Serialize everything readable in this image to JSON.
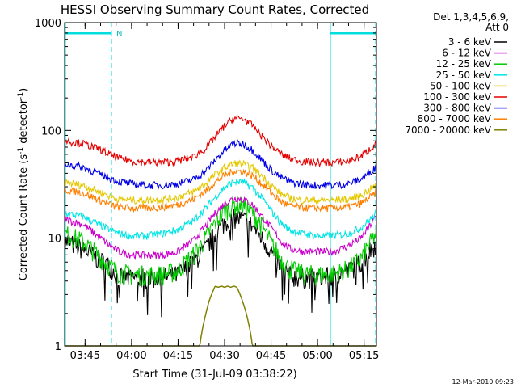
{
  "chart_data": {
    "type": "line",
    "title": "HESSI Observing Summary Count Rates, Corrected",
    "xlabel": "Start Time (31-Jul-09 03:38:22)",
    "ylabel": {
      "main": "Corrected Count Rate (s",
      "sup1": "-1",
      "mid": " detector",
      "sup2": "-1",
      "end": ")"
    },
    "y_scale": "log",
    "ylim": [
      1,
      1000
    ],
    "xlim_minutes": [
      218.4,
      319.0
    ],
    "x_ticks": [
      {
        "label": "03:45",
        "minute": 225
      },
      {
        "label": "04:00",
        "minute": 240
      },
      {
        "label": "04:15",
        "minute": 255
      },
      {
        "label": "04:30",
        "minute": 270
      },
      {
        "label": "04:45",
        "minute": 285
      },
      {
        "label": "05:00",
        "minute": 300
      },
      {
        "label": "05:15",
        "minute": 315
      }
    ],
    "y_ticks": [
      {
        "label": "1",
        "value": 1
      },
      {
        "label": "10",
        "value": 10
      },
      {
        "label": "100",
        "value": 100
      },
      {
        "label": "1000",
        "value": 1000
      }
    ],
    "legend_header": [
      "Det 1,3,4,5,6,9,",
      "Att 0"
    ],
    "legend_position": "right",
    "night_marker": "N",
    "series": [
      {
        "name": "3 - 6 keV",
        "color": "#000000",
        "x": [
          218.4,
          224,
          229,
          233,
          236,
          240,
          245,
          250,
          255,
          260,
          264,
          267,
          270,
          273,
          276,
          279,
          282,
          285,
          288,
          291,
          295,
          300,
          305,
          310,
          314,
          316.5,
          319
        ],
        "y": [
          9.5,
          8,
          6.5,
          5.5,
          4.3,
          4.3,
          4.3,
          4.3,
          4.6,
          6,
          8,
          11,
          14,
          15.5,
          15,
          13,
          10,
          7.5,
          5.5,
          4.5,
          4.3,
          4.3,
          4.5,
          5,
          6,
          7.5,
          9
        ]
      },
      {
        "name": "6 - 12 keV",
        "color": "#cc00cc",
        "x": [
          218.4,
          224,
          229,
          233,
          236,
          240,
          245,
          250,
          255,
          260,
          264,
          267,
          270,
          273,
          276,
          279,
          282,
          285,
          288,
          291,
          295,
          300,
          305,
          310,
          314,
          316.5,
          319
        ],
        "y": [
          15,
          13.5,
          10.5,
          8.5,
          7.5,
          7,
          7,
          7,
          7.5,
          9.5,
          13,
          17,
          21,
          23.5,
          23,
          20.5,
          16,
          12.5,
          9.5,
          8,
          7.5,
          7.5,
          7.5,
          8.5,
          10,
          12.5,
          16
        ]
      },
      {
        "name": "12 - 25 keV",
        "color": "#00cc00",
        "x": [
          218.4,
          224,
          229,
          233,
          236,
          240,
          245,
          250,
          255,
          260,
          264,
          267,
          270,
          273,
          276,
          279,
          282,
          285,
          288,
          291,
          295,
          300,
          305,
          310,
          314,
          316.5,
          319
        ],
        "y": [
          11,
          9.5,
          7,
          5.5,
          4.8,
          4.6,
          4.6,
          4.6,
          5,
          7,
          10,
          14,
          18,
          20.5,
          20,
          17.5,
          13,
          9,
          6.5,
          5.2,
          4.7,
          4.6,
          4.7,
          5.2,
          6.5,
          8.5,
          11
        ]
      },
      {
        "name": "25 - 50 keV",
        "color": "#00e5e5",
        "x": [
          218.4,
          224,
          229,
          233,
          236,
          240,
          245,
          250,
          255,
          260,
          264,
          267,
          270,
          273,
          276,
          279,
          282,
          285,
          288,
          291,
          295,
          300,
          305,
          310,
          314,
          316.5,
          319
        ],
        "y": [
          17,
          16,
          13.5,
          12,
          11,
          10.5,
          10.5,
          11,
          12,
          14.5,
          19,
          24,
          29.5,
          33.5,
          33,
          29.5,
          23.5,
          18,
          14,
          12,
          11,
          10.5,
          10.5,
          11,
          12.5,
          14.5,
          17
        ]
      },
      {
        "name": "50 - 100 keV",
        "color": "#e5c800",
        "x": [
          218.4,
          224,
          229,
          233,
          236,
          240,
          245,
          250,
          255,
          260,
          264,
          267,
          270,
          273,
          276,
          279,
          282,
          285,
          288,
          291,
          295,
          300,
          305,
          310,
          314,
          316.5,
          319
        ],
        "y": [
          33,
          31,
          27.5,
          24.5,
          23,
          22.5,
          22.5,
          23,
          24,
          27,
          32,
          39,
          45,
          49.5,
          49,
          45,
          38,
          31,
          26,
          23.5,
          22.5,
          22.5,
          22.5,
          23,
          25,
          28,
          31
        ]
      },
      {
        "name": "100 - 300 keV",
        "color": "#e50000",
        "x": [
          218.4,
          224,
          229,
          233,
          236,
          240,
          245,
          250,
          255,
          260,
          264,
          267,
          270,
          273,
          276,
          279,
          282,
          285,
          288,
          291,
          295,
          300,
          305,
          310,
          314,
          316.5,
          319
        ],
        "y": [
          80,
          76,
          68,
          60,
          55,
          52,
          50.5,
          50.5,
          52,
          57,
          68,
          87,
          110,
          130,
          128,
          111,
          89,
          72,
          61,
          55,
          51.5,
          50.5,
          50.5,
          52,
          57,
          66,
          76
        ]
      },
      {
        "name": "300 - 800 keV",
        "color": "#0000e5",
        "x": [
          218.4,
          224,
          229,
          233,
          236,
          240,
          245,
          250,
          255,
          260,
          264,
          267,
          270,
          273,
          276,
          279,
          282,
          285,
          288,
          291,
          295,
          300,
          305,
          310,
          314,
          316.5,
          319
        ],
        "y": [
          49,
          46,
          40,
          36,
          33.5,
          32,
          31,
          31,
          32,
          35,
          42,
          53,
          65,
          76,
          75,
          66,
          53,
          43,
          37,
          33.5,
          31.5,
          31,
          31,
          32,
          35,
          40,
          46
        ]
      },
      {
        "name": "800 - 7000 keV",
        "color": "#ff7f00",
        "x": [
          218.4,
          224,
          229,
          233,
          236,
          240,
          245,
          250,
          255,
          260,
          264,
          267,
          270,
          273,
          276,
          279,
          282,
          285,
          288,
          291,
          295,
          300,
          305,
          310,
          314,
          316.5,
          319
        ],
        "y": [
          28,
          26.5,
          23,
          20.5,
          19.5,
          19,
          19,
          19.5,
          20.5,
          23,
          27.5,
          33,
          38,
          42,
          41.5,
          38,
          32,
          26.5,
          22,
          20,
          19.2,
          19,
          19,
          19.5,
          21,
          23.5,
          26.5
        ]
      },
      {
        "name": "7000 - 20000 keV",
        "color": "#808000",
        "x": [
          218.4,
          260,
          262,
          263,
          264,
          265,
          266,
          267,
          268,
          269,
          270,
          271,
          272,
          273,
          274,
          275,
          276,
          277,
          278,
          279,
          280,
          282,
          319
        ],
        "y": [
          1,
          1,
          1,
          1.5,
          2,
          2.6,
          3.1,
          3.6,
          3.5,
          3.6,
          3.5,
          3.6,
          3.5,
          3.6,
          3.5,
          3,
          2.5,
          2,
          1.5,
          1,
          1,
          1,
          1
        ]
      }
    ]
  },
  "footer": {
    "date": "12-Mar-2010 09:23"
  }
}
